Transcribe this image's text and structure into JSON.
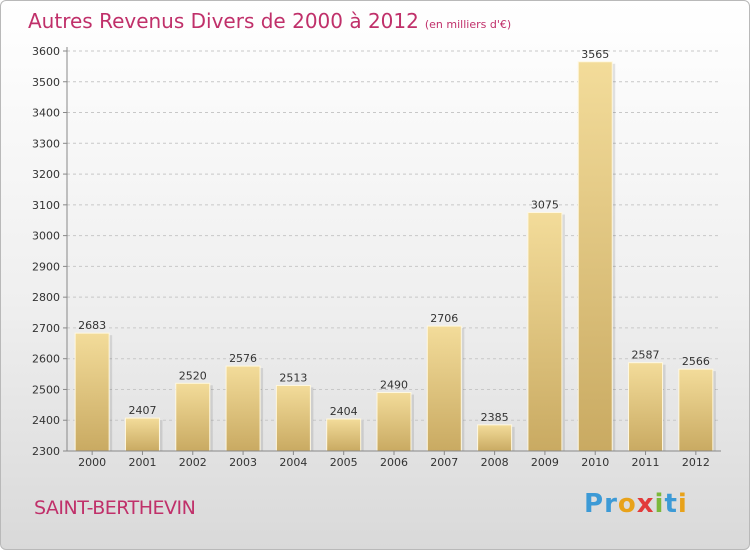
{
  "header": {
    "title": "Autres Revenus Divers de 2000 à 2012",
    "subtitle": "(en milliers d'€)"
  },
  "footer": {
    "city": "SAINT-BERTHEVIN",
    "logo_text": "Proxiti",
    "logo_colors": [
      "#3c9ad6",
      "#3c9ad6",
      "#e8a21a",
      "#e23b3b",
      "#7cb83a",
      "#3c9ad6",
      "#e8a21a"
    ]
  },
  "colors": {
    "bar_light": "#f3dc9a",
    "bar_dark": "#c9aa62",
    "grid": "#c8c8c8",
    "title": "#c0306a"
  },
  "chart_data": {
    "type": "bar",
    "title": "Autres Revenus Divers de 2000 à 2012",
    "subtitle": "(en milliers d'€)",
    "xlabel": "",
    "ylabel": "",
    "categories": [
      "2000",
      "2001",
      "2002",
      "2003",
      "2004",
      "2005",
      "2006",
      "2007",
      "2008",
      "2009",
      "2010",
      "2011",
      "2012"
    ],
    "values": [
      2683,
      2407,
      2520,
      2576,
      2513,
      2404,
      2490,
      2706,
      2385,
      3075,
      3565,
      2587,
      2566
    ],
    "yticks": [
      2300,
      2400,
      2500,
      2600,
      2700,
      2800,
      2900,
      3000,
      3100,
      3200,
      3300,
      3400,
      3500,
      3600
    ],
    "ylim": [
      2300,
      3600
    ],
    "grid": "horizontal-dashed",
    "data_labels": true
  }
}
